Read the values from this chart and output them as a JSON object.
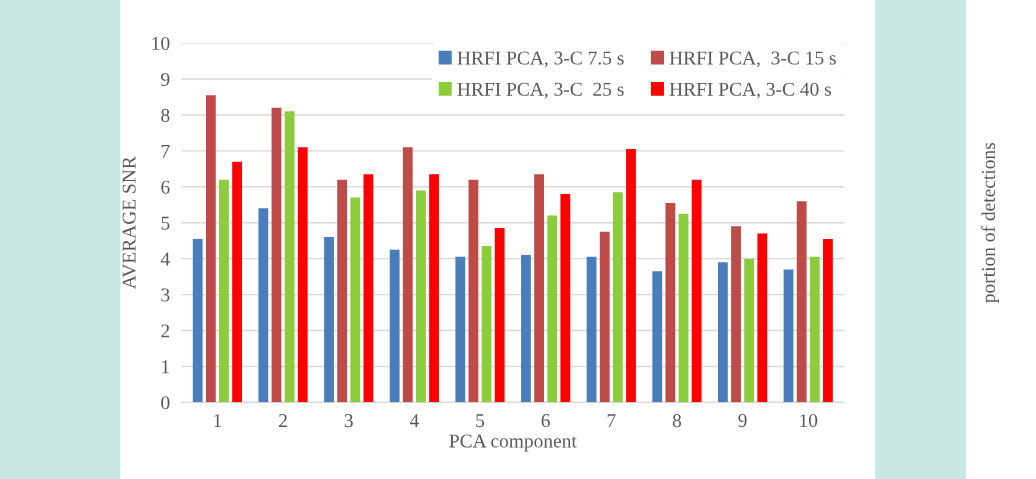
{
  "chart_data": [
    {
      "type": "bar",
      "xlabel": "PCA component",
      "ylabel": "AVERAGE SNR",
      "categories": [
        "1",
        "2",
        "3",
        "4",
        "5",
        "6",
        "7",
        "8",
        "9",
        "10"
      ],
      "series": [
        {
          "name": "HRFI PCA, 3-C 7.5 s",
          "color": "#4a7ebb",
          "values": [
            4.55,
            5.4,
            4.6,
            4.25,
            4.05,
            4.1,
            4.05,
            3.65,
            3.9,
            3.7
          ]
        },
        {
          "name": "HRFI PCA,  3-C 15 s",
          "color": "#be4b48",
          "values": [
            8.55,
            8.2,
            6.2,
            7.1,
            6.2,
            6.35,
            4.75,
            5.55,
            4.9,
            5.6
          ]
        },
        {
          "name": "HRFI PCA, 3-C  25 s",
          "color": "#8ccc3c",
          "values": [
            6.2,
            8.1,
            5.7,
            5.9,
            4.35,
            5.2,
            5.85,
            5.25,
            4.0,
            4.05
          ]
        },
        {
          "name": "HRFI PCA, 3-C 40 s",
          "color": "#ff0000",
          "values": [
            6.7,
            7.1,
            6.35,
            6.35,
            4.85,
            5.8,
            7.05,
            6.2,
            4.7,
            4.55
          ]
        }
      ],
      "ylim": [
        0,
        10
      ],
      "yticks": [
        0,
        1,
        2,
        3,
        4,
        5,
        6,
        7,
        8,
        9,
        10
      ],
      "grid": "y",
      "legend": "top right"
    },
    {
      "type": "other",
      "ylabel": "portion of detections"
    }
  ]
}
